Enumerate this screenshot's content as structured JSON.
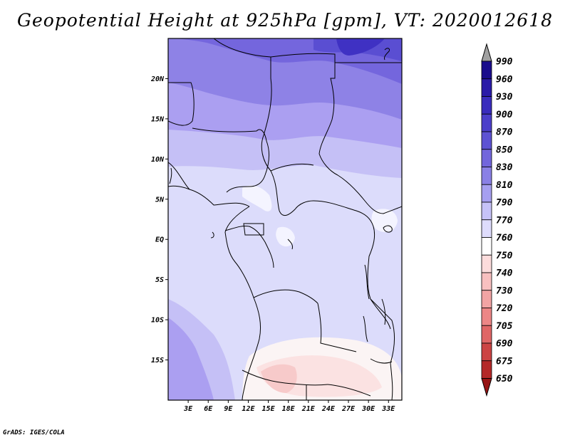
{
  "title": "Geopotential Height at 925hPa [gpm], VT: 2020012618",
  "footer": "GrADS: IGES/COLA",
  "map": {
    "lon_range": [
      0,
      35
    ],
    "lat_range": [
      -20,
      25
    ],
    "lat_ticks": [
      {
        "value": 20,
        "label": "20N"
      },
      {
        "value": 15,
        "label": "15N"
      },
      {
        "value": 10,
        "label": "10N"
      },
      {
        "value": 5,
        "label": "5N"
      },
      {
        "value": 0,
        "label": "EQ"
      },
      {
        "value": -5,
        "label": "5S"
      },
      {
        "value": -10,
        "label": "10S"
      },
      {
        "value": -15,
        "label": "15S"
      }
    ],
    "lon_ticks": [
      {
        "value": 3,
        "label": "3E"
      },
      {
        "value": 6,
        "label": "6E"
      },
      {
        "value": 9,
        "label": "9E"
      },
      {
        "value": 12,
        "label": "12E"
      },
      {
        "value": 15,
        "label": "15E"
      },
      {
        "value": 18,
        "label": "18E"
      },
      {
        "value": 21,
        "label": "21E"
      },
      {
        "value": 24,
        "label": "24E"
      },
      {
        "value": 27,
        "label": "27E"
      },
      {
        "value": 30,
        "label": "30E"
      },
      {
        "value": 33,
        "label": "33E"
      }
    ]
  },
  "colorbar": {
    "levels": [
      "990",
      "960",
      "930",
      "900",
      "870",
      "850",
      "830",
      "810",
      "790",
      "770",
      "760",
      "750",
      "740",
      "730",
      "720",
      "705",
      "690",
      "675",
      "650"
    ],
    "colors": [
      "#a0a0a0",
      "#1a0c8c",
      "#2a1aa8",
      "#3a2cbd",
      "#4c3fca",
      "#5d52d3",
      "#7266dc",
      "#8a80e5",
      "#a69ff0",
      "#c6c2f8",
      "#dedcfc",
      "#ffffff",
      "#fcdcdc",
      "#f8c0c0",
      "#f2a4a4",
      "#ec8686",
      "#e06666",
      "#cc4444",
      "#b42828",
      "#961414"
    ]
  }
}
